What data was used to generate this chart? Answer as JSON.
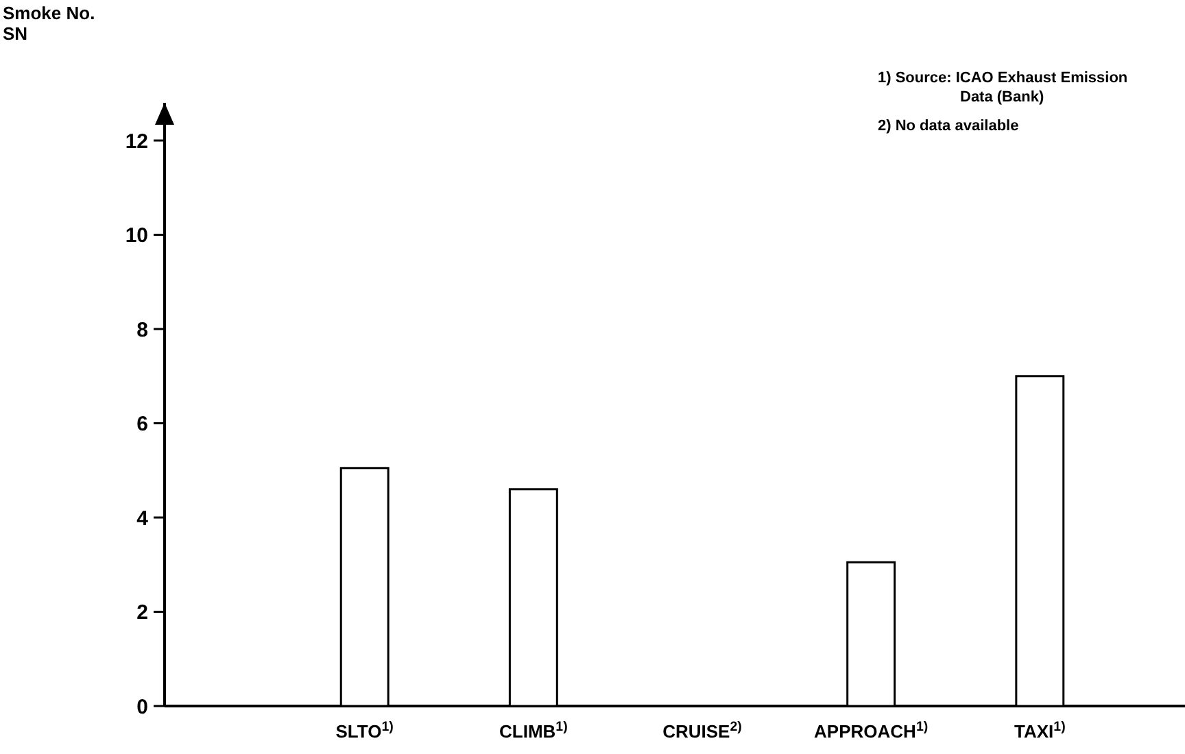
{
  "chart_data": {
    "type": "bar",
    "ylabel": "Smoke No.\nSN",
    "categories": [
      "SLTO$^{1)}$",
      "CLIMB$^{1)}$",
      "CRUISE$^{2)}$",
      "APPROACH$^{1)}$",
      "TAXI$^{1)}$"
    ],
    "values": [
      5.05,
      4.6,
      null,
      3.05,
      7.0
    ],
    "color": "#ffffff",
    "ylim": [
      0,
      12.8
    ],
    "yticks": [
      0,
      2,
      4,
      6,
      8,
      10,
      12
    ],
    "grid": false,
    "annotations": [
      "1)  Source: ICAO Exhaust Emission\nData (Bank)",
      "2) No data available"
    ]
  }
}
